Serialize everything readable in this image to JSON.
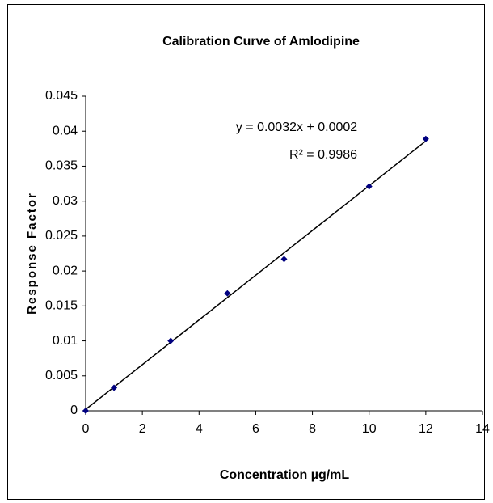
{
  "chart_data": {
    "type": "scatter",
    "title": "Calibration Curve of Amlodipine",
    "x_label": "Concentration µg/mL",
    "y_label": "Response Factor",
    "x": [
      0,
      1,
      3,
      5,
      7,
      10,
      12
    ],
    "series": [
      {
        "name": "Amlodipine",
        "color": "#000080",
        "values": [
          0,
          0.0033,
          0.01,
          0.0168,
          0.0217,
          0.0321,
          0.0389
        ]
      }
    ],
    "trendline": {
      "slope": 0.0032,
      "intercept": 0.0002,
      "equation_label": "y = 0.0032x + 0.0002",
      "r2_label": "R² = 0.9986"
    },
    "xlim": [
      0,
      14
    ],
    "xticks": [
      0,
      2,
      4,
      6,
      8,
      10,
      12,
      14
    ],
    "ylim": [
      0,
      0.045
    ],
    "yticks": [
      0,
      0.005,
      0.01,
      0.015,
      0.02,
      0.025,
      0.03,
      0.035,
      0.04,
      0.045
    ],
    "grid": false
  }
}
